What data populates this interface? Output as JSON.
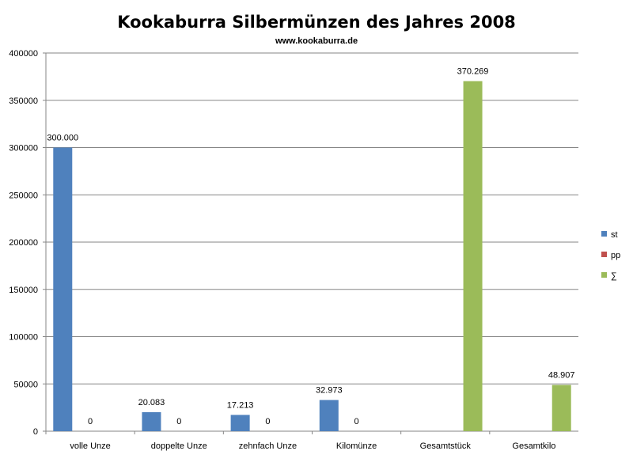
{
  "chart_data": {
    "type": "bar",
    "title": "Kookaburra Silbermünzen des Jahres 2008",
    "subtitle": "www.kookaburra.de",
    "categories": [
      "volle Unze",
      "doppelte Unze",
      "zehnfach Unze",
      "Kilomünze",
      "Gesamtstück",
      "Gesamtkilo"
    ],
    "series": [
      {
        "name": "st",
        "color": "#4f81bd",
        "values": [
          300000,
          20083,
          17213,
          32973,
          null,
          null
        ],
        "labels": [
          "300.000",
          "20.083",
          "17.213",
          "32.973",
          null,
          null
        ]
      },
      {
        "name": "pp",
        "color": "#c0504d",
        "values": [
          0,
          0,
          0,
          0,
          null,
          null
        ],
        "labels": [
          "0",
          "0",
          "0",
          "0",
          null,
          null
        ]
      },
      {
        "name": "∑",
        "color": "#9bbb59",
        "values": [
          null,
          null,
          null,
          null,
          370269,
          48907
        ],
        "labels": [
          null,
          null,
          null,
          null,
          "370.269",
          "48.907"
        ]
      }
    ],
    "ylim": [
      0,
      400000
    ],
    "yticks": [
      0,
      50000,
      100000,
      150000,
      200000,
      250000,
      300000,
      350000,
      400000
    ],
    "ytick_labels": [
      "0",
      "50000",
      "100000",
      "150000",
      "200000",
      "250000",
      "300000",
      "350000",
      "400000"
    ],
    "grid": true,
    "legend_position": "right"
  }
}
